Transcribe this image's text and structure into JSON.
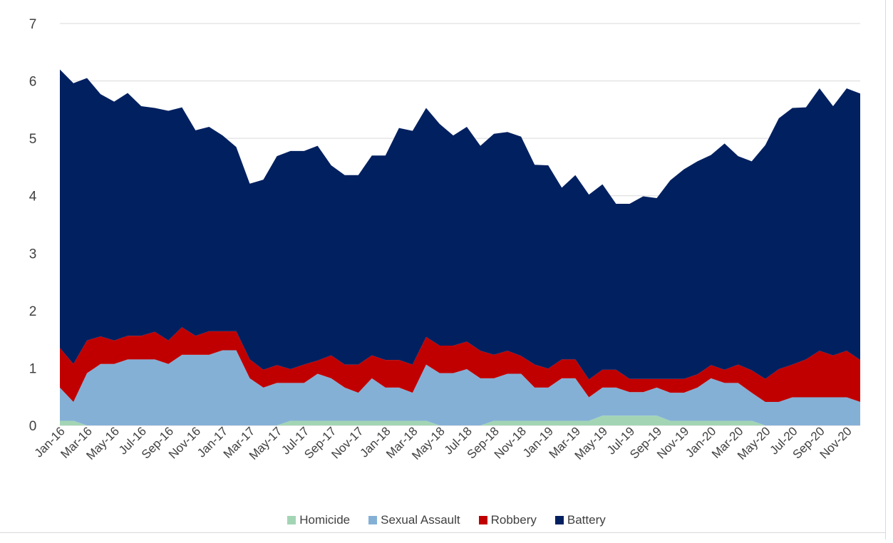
{
  "chart_data": {
    "type": "area",
    "stacked": true,
    "title": "",
    "xlabel": "",
    "ylabel": "",
    "ylim": [
      0,
      7
    ],
    "yticks": [
      0,
      1,
      2,
      3,
      4,
      5,
      6,
      7
    ],
    "grid": "horizontal",
    "legend_position": "bottom",
    "x": [
      "Jan-16",
      "Feb-16",
      "Mar-16",
      "Apr-16",
      "May-16",
      "Jun-16",
      "Jul-16",
      "Aug-16",
      "Sep-16",
      "Oct-16",
      "Nov-16",
      "Dec-16",
      "Jan-17",
      "Feb-17",
      "Mar-17",
      "Apr-17",
      "May-17",
      "Jun-17",
      "Jul-17",
      "Aug-17",
      "Sep-17",
      "Oct-17",
      "Nov-17",
      "Dec-17",
      "Jan-18",
      "Feb-18",
      "Mar-18",
      "Apr-18",
      "May-18",
      "Jun-18",
      "Jul-18",
      "Aug-18",
      "Sep-18",
      "Oct-18",
      "Nov-18",
      "Dec-18",
      "Jan-19",
      "Feb-19",
      "Mar-19",
      "Apr-19",
      "May-19",
      "Jun-19",
      "Jul-19",
      "Aug-19",
      "Sep-19",
      "Oct-19",
      "Nov-19",
      "Dec-19",
      "Jan-20",
      "Feb-20",
      "Mar-20",
      "Apr-20",
      "May-20",
      "Jun-20",
      "Jul-20",
      "Aug-20",
      "Sep-20",
      "Oct-20",
      "Nov-20",
      "Dec-20"
    ],
    "xtick_labels": [
      "Jan-16",
      "Mar-16",
      "May-16",
      "Jul-16",
      "Sep-16",
      "Nov-16",
      "Jan-17",
      "Mar-17",
      "May-17",
      "Jul-17",
      "Sep-17",
      "Nov-17",
      "Jan-18",
      "Mar-18",
      "May-18",
      "Jul-18",
      "Sep-18",
      "Nov-18",
      "Jan-19",
      "Mar-19",
      "May-19",
      "Jul-19",
      "Sep-19",
      "Nov-19",
      "Jan-20",
      "Mar-20",
      "May-20",
      "Jul-20",
      "Sep-20",
      "Nov-20"
    ],
    "series": [
      {
        "name": "Homicide",
        "color": "#a3d5b5",
        "values": [
          0.08,
          0.08,
          0,
          0,
          0,
          0,
          0,
          0,
          0,
          0,
          0,
          0,
          0,
          0,
          0,
          0,
          0,
          0.08,
          0.08,
          0.08,
          0.08,
          0.08,
          0.08,
          0.08,
          0.08,
          0.08,
          0.08,
          0.08,
          0,
          0,
          0,
          0,
          0.08,
          0.08,
          0.08,
          0.08,
          0.08,
          0.08,
          0.08,
          0.08,
          0.17,
          0.17,
          0.17,
          0.17,
          0.17,
          0.08,
          0.08,
          0.08,
          0.08,
          0.08,
          0.08,
          0.08,
          0,
          0,
          0,
          0,
          0,
          0,
          0,
          0
        ]
      },
      {
        "name": "Sexual Assault",
        "color": "#85b0d6",
        "values": [
          0.58,
          0.33,
          0.91,
          1.07,
          1.07,
          1.15,
          1.15,
          1.15,
          1.07,
          1.23,
          1.23,
          1.23,
          1.31,
          1.31,
          0.82,
          0.66,
          0.74,
          0.66,
          0.66,
          0.82,
          0.74,
          0.58,
          0.49,
          0.74,
          0.58,
          0.58,
          0.49,
          0.98,
          0.91,
          0.91,
          0.98,
          0.82,
          0.74,
          0.82,
          0.82,
          0.58,
          0.58,
          0.74,
          0.74,
          0.41,
          0.49,
          0.49,
          0.41,
          0.41,
          0.49,
          0.49,
          0.49,
          0.58,
          0.74,
          0.66,
          0.66,
          0.49,
          0.41,
          0.41,
          0.49,
          0.49,
          0.49,
          0.49,
          0.49,
          0.41
        ]
      },
      {
        "name": "Robbery",
        "color": "#c00000",
        "values": [
          0.69,
          0.66,
          0.57,
          0.48,
          0.41,
          0.41,
          0.41,
          0.48,
          0.41,
          0.48,
          0.33,
          0.41,
          0.33,
          0.33,
          0.33,
          0.31,
          0.31,
          0.24,
          0.32,
          0.23,
          0.4,
          0.4,
          0.49,
          0.4,
          0.48,
          0.48,
          0.49,
          0.48,
          0.48,
          0.48,
          0.48,
          0.48,
          0.41,
          0.4,
          0.31,
          0.4,
          0.33,
          0.33,
          0.33,
          0.31,
          0.31,
          0.31,
          0.23,
          0.23,
          0.15,
          0.24,
          0.24,
          0.23,
          0.23,
          0.23,
          0.32,
          0.39,
          0.4,
          0.57,
          0.57,
          0.66,
          0.81,
          0.73,
          0.81,
          0.73
        ]
      },
      {
        "name": "Battery",
        "color": "#002060",
        "values": [
          4.85,
          4.89,
          4.57,
          4.22,
          4.16,
          4.23,
          4.0,
          3.9,
          4.0,
          3.83,
          3.58,
          3.56,
          3.41,
          3.21,
          3.06,
          3.31,
          3.64,
          3.8,
          3.72,
          3.74,
          3.31,
          3.3,
          3.3,
          3.48,
          3.56,
          4.04,
          4.07,
          3.99,
          3.86,
          3.66,
          3.74,
          3.57,
          3.85,
          3.81,
          3.82,
          3.48,
          3.54,
          2.99,
          3.21,
          3.22,
          3.23,
          2.89,
          3.05,
          3.18,
          3.15,
          3.46,
          3.65,
          3.71,
          3.66,
          3.94,
          3.63,
          3.64,
          4.07,
          4.37,
          4.47,
          4.39,
          4.57,
          4.34,
          4.57,
          4.64
        ]
      }
    ]
  }
}
